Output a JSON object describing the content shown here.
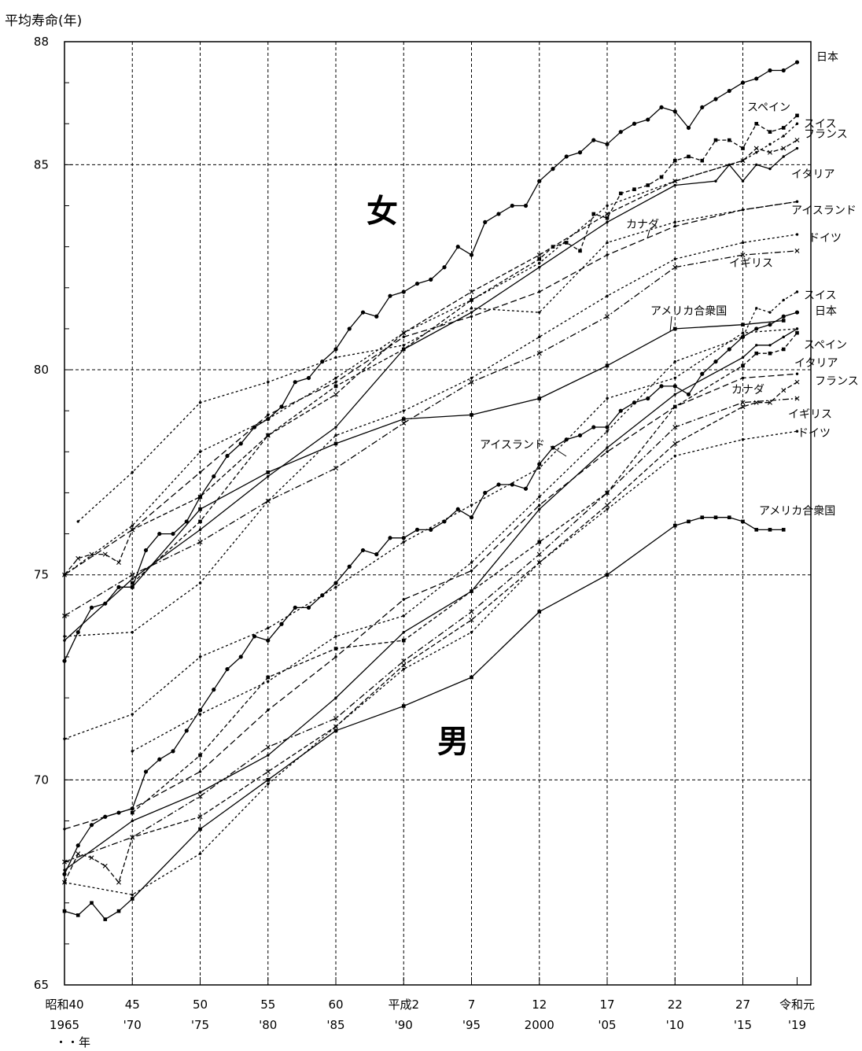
{
  "chart_data": {
    "type": "line",
    "ylabel": "平均寿命(年)",
    "xlabel_note": "・・年",
    "ylim": [
      65,
      88
    ],
    "xlim": [
      1965,
      2020
    ],
    "y_ticks": [
      "65",
      "70",
      "75",
      "80",
      "85",
      "88"
    ],
    "x_ticks": [
      {
        "x": 1965,
        "era": "昭和40",
        "year": "1965"
      },
      {
        "x": 1970,
        "era": "45",
        "year": "'70"
      },
      {
        "x": 1975,
        "era": "50",
        "year": "'75"
      },
      {
        "x": 1980,
        "era": "55",
        "year": "'80"
      },
      {
        "x": 1985,
        "era": "60",
        "year": "'85"
      },
      {
        "x": 1990,
        "era": "平成2",
        "year": "'90"
      },
      {
        "x": 1995,
        "era": "7",
        "year": "'95"
      },
      {
        "x": 2000,
        "era": "12",
        "year": "2000"
      },
      {
        "x": 2005,
        "era": "17",
        "year": "'05"
      },
      {
        "x": 2010,
        "era": "22",
        "year": "'10"
      },
      {
        "x": 2015,
        "era": "27",
        "year": "'15"
      },
      {
        "x": 2019,
        "era": "令和元",
        "year": "'19"
      }
    ],
    "group_labels": {
      "female": "女",
      "male": "男"
    },
    "grid": true,
    "series": [
      {
        "name": "日本",
        "sex": "female",
        "dash": "",
        "marker": "circle",
        "x": [
          1965,
          1966,
          1967,
          1968,
          1969,
          1970,
          1971,
          1972,
          1973,
          1974,
          1975,
          1976,
          1977,
          1978,
          1979,
          1980,
          1981,
          1982,
          1983,
          1984,
          1985,
          1986,
          1987,
          1988,
          1989,
          1990,
          1991,
          1992,
          1993,
          1994,
          1995,
          1996,
          1997,
          1998,
          1999,
          2000,
          2001,
          2002,
          2003,
          2004,
          2005,
          2006,
          2007,
          2008,
          2009,
          2010,
          2011,
          2012,
          2013,
          2014,
          2015,
          2016,
          2017,
          2018,
          2019
        ],
        "y": [
          72.9,
          73.6,
          74.2,
          74.3,
          74.7,
          74.7,
          75.6,
          76.0,
          76.0,
          76.3,
          76.9,
          77.4,
          77.9,
          78.2,
          78.6,
          78.8,
          79.1,
          79.7,
          79.8,
          80.2,
          80.5,
          81.0,
          81.4,
          81.3,
          81.8,
          81.9,
          82.1,
          82.2,
          82.5,
          83.0,
          82.8,
          83.6,
          83.8,
          84.0,
          84.0,
          84.6,
          84.9,
          85.2,
          85.3,
          85.6,
          85.5,
          85.8,
          86.0,
          86.1,
          86.4,
          86.3,
          85.9,
          86.4,
          86.6,
          86.8,
          87.0,
          87.1,
          87.3,
          87.3,
          87.5
        ]
      },
      {
        "name": "スペイン",
        "sex": "female",
        "dash": "5,3",
        "marker": "square",
        "x": [
          1970,
          1975,
          1980,
          1985,
          1990,
          1995,
          2000,
          2001,
          2002,
          2003,
          2004,
          2005,
          2006,
          2007,
          2008,
          2009,
          2010,
          2011,
          2012,
          2013,
          2014,
          2015,
          2016,
          2017,
          2018,
          2019
        ],
        "y": [
          74.8,
          76.3,
          78.4,
          79.6,
          80.5,
          81.7,
          82.7,
          83.0,
          83.1,
          82.9,
          83.8,
          83.7,
          84.3,
          84.4,
          84.5,
          84.7,
          85.1,
          85.2,
          85.1,
          85.6,
          85.6,
          85.4,
          86.0,
          85.8,
          85.9,
          86.2
        ]
      },
      {
        "name": "スイス",
        "sex": "female",
        "dash": "3,3",
        "marker": "dot",
        "x": [
          1965,
          1970,
          1975,
          1980,
          1985,
          1990,
          1995,
          2000,
          2005,
          2010,
          2015,
          2016,
          2017,
          2018,
          2019
        ],
        "y": [
          75.0,
          76.2,
          78.0,
          78.8,
          79.8,
          80.9,
          81.7,
          82.6,
          84.0,
          84.6,
          85.1,
          85.3,
          85.5,
          85.7,
          86.0
        ]
      },
      {
        "name": "フランス",
        "sex": "female",
        "dash": "6,3",
        "marker": "cross",
        "x": [
          1965,
          1966,
          1967,
          1968,
          1969,
          1970,
          1975,
          1980,
          1985,
          1990,
          1995,
          2000,
          2005,
          2010,
          2015,
          2016,
          2017,
          2018,
          2019
        ],
        "y": [
          75.0,
          75.4,
          75.5,
          75.5,
          75.3,
          76.1,
          76.9,
          78.4,
          79.4,
          80.9,
          81.9,
          82.8,
          83.8,
          84.6,
          85.1,
          85.4,
          85.3,
          85.4,
          85.6
        ]
      },
      {
        "name": "イタリア",
        "sex": "female",
        "dash": "",
        "marker": "dot",
        "x": [
          1965,
          1970,
          1975,
          1980,
          1985,
          1990,
          1995,
          2000,
          2005,
          2010,
          2013,
          2014,
          2015,
          2016,
          2017,
          2018,
          2019
        ],
        "y": [
          73.4,
          74.9,
          76.1,
          77.4,
          78.6,
          80.5,
          81.4,
          82.5,
          83.6,
          84.5,
          84.6,
          85.0,
          84.6,
          85.0,
          84.9,
          85.2,
          85.4
        ]
      },
      {
        "name": "カナダ",
        "sex": "female",
        "dash": "8,4",
        "marker": "dot",
        "x": [
          1965,
          1970,
          1975,
          1980,
          1985,
          1990,
          1995,
          2000,
          2005,
          2010,
          2015,
          2019
        ],
        "y": [
          75.0,
          76.1,
          77.5,
          78.9,
          79.7,
          80.8,
          81.3,
          81.9,
          82.8,
          83.5,
          83.9,
          84.1
        ]
      },
      {
        "name": "アイスランド",
        "sex": "female",
        "dash": "3,3",
        "marker": "dot",
        "x": [
          1966,
          1970,
          1975,
          1980,
          1985,
          1990,
          1995,
          2000,
          2005,
          2010,
          2015,
          2019
        ],
        "y": [
          76.3,
          77.5,
          79.2,
          79.7,
          80.3,
          80.6,
          81.5,
          81.4,
          83.1,
          83.6,
          83.9,
          84.1
        ]
      },
      {
        "name": "ドイツ",
        "sex": "female",
        "dash": "3,3",
        "marker": "dot",
        "x": [
          1965,
          1970,
          1975,
          1980,
          1985,
          1990,
          1995,
          2000,
          2005,
          2010,
          2015,
          2019
        ],
        "y": [
          73.5,
          73.6,
          74.8,
          76.8,
          78.4,
          79.0,
          79.8,
          80.8,
          81.8,
          82.7,
          83.1,
          83.3
        ]
      },
      {
        "name": "イギリス",
        "sex": "female",
        "dash": "8,3,2,3",
        "marker": "cross",
        "x": [
          1965,
          1970,
          1975,
          1980,
          1985,
          1990,
          1995,
          2000,
          2005,
          2010,
          2015,
          2019
        ],
        "y": [
          74.0,
          75.0,
          75.8,
          76.8,
          77.6,
          78.7,
          79.7,
          80.4,
          81.3,
          82.5,
          82.8,
          82.9
        ]
      },
      {
        "name": "アメリカ合衆国",
        "sex": "female",
        "dash": "",
        "marker": "square",
        "x": [
          1970,
          1975,
          1980,
          1985,
          1990,
          1995,
          2000,
          2005,
          2010,
          2015,
          2018
        ],
        "y": [
          74.7,
          76.6,
          77.5,
          78.2,
          78.8,
          78.9,
          79.3,
          80.1,
          81.0,
          81.1,
          81.2
        ]
      },
      {
        "name": "スイス",
        "sex": "male",
        "dash": "3,3",
        "marker": "dot",
        "x": [
          1970,
          1975,
          1980,
          1985,
          1990,
          1995,
          2000,
          2005,
          2010,
          2015,
          2016,
          2017,
          2018,
          2019
        ],
        "y": [
          70.7,
          71.6,
          72.4,
          73.5,
          74.0,
          75.3,
          76.9,
          78.5,
          80.2,
          80.8,
          81.5,
          81.4,
          81.7,
          81.9
        ]
      },
      {
        "name": "日本",
        "sex": "male",
        "dash": "",
        "marker": "circle",
        "x": [
          1965,
          1966,
          1967,
          1968,
          1969,
          1970,
          1971,
          1972,
          1973,
          1974,
          1975,
          1976,
          1977,
          1978,
          1979,
          1980,
          1981,
          1982,
          1983,
          1984,
          1985,
          1986,
          1987,
          1988,
          1989,
          1990,
          1991,
          1992,
          1993,
          1994,
          1995,
          1996,
          1997,
          1998,
          1999,
          2000,
          2001,
          2002,
          2003,
          2004,
          2005,
          2006,
          2007,
          2008,
          2009,
          2010,
          2011,
          2012,
          2013,
          2014,
          2015,
          2016,
          2017,
          2018,
          2019
        ],
        "y": [
          67.7,
          68.4,
          68.9,
          69.1,
          69.2,
          69.3,
          70.2,
          70.5,
          70.7,
          71.2,
          71.7,
          72.2,
          72.7,
          73.0,
          73.5,
          73.4,
          73.8,
          74.2,
          74.2,
          74.5,
          74.8,
          75.2,
          75.6,
          75.5,
          75.9,
          75.9,
          76.1,
          76.1,
          76.3,
          76.6,
          76.4,
          77.0,
          77.2,
          77.2,
          77.1,
          77.7,
          78.1,
          78.3,
          78.4,
          78.6,
          78.6,
          79.0,
          79.2,
          79.3,
          79.6,
          79.6,
          79.4,
          79.9,
          80.2,
          80.5,
          80.8,
          81.0,
          81.1,
          81.3,
          81.4
        ]
      },
      {
        "name": "スペイン",
        "sex": "male",
        "dash": "5,3",
        "marker": "square",
        "x": [
          1970,
          1975,
          1980,
          1985,
          1990,
          1995,
          2000,
          2005,
          2010,
          2015,
          2016,
          2017,
          2018,
          2019
        ],
        "y": [
          69.2,
          70.6,
          72.5,
          73.2,
          73.4,
          74.6,
          75.8,
          77.0,
          79.1,
          80.1,
          80.4,
          80.4,
          80.5,
          80.9
        ]
      },
      {
        "name": "イタリア",
        "sex": "male",
        "dash": "",
        "marker": "dot",
        "x": [
          1965,
          1970,
          1975,
          1980,
          1985,
          1990,
          1995,
          2000,
          2005,
          2010,
          2015,
          2016,
          2017,
          2018,
          2019
        ],
        "y": [
          67.8,
          69.0,
          69.7,
          70.6,
          72.0,
          73.6,
          74.6,
          76.6,
          78.1,
          79.4,
          80.3,
          80.6,
          80.6,
          80.8,
          81.0
        ]
      },
      {
        "name": "カナダ",
        "sex": "male",
        "dash": "8,4",
        "marker": "dot",
        "x": [
          1965,
          1970,
          1975,
          1980,
          1985,
          1990,
          1995,
          2000,
          2005,
          2010,
          2015,
          2019
        ],
        "y": [
          68.8,
          69.3,
          70.2,
          71.7,
          73.0,
          74.4,
          75.1,
          76.7,
          78.0,
          79.1,
          79.8,
          79.9
        ]
      },
      {
        "name": "フランス",
        "sex": "male",
        "dash": "6,3",
        "marker": "cross",
        "x": [
          1965,
          1966,
          1967,
          1968,
          1969,
          1970,
          1975,
          1980,
          1985,
          1990,
          1995,
          2000,
          2005,
          2010,
          2015,
          2016,
          2017,
          2018,
          2019
        ],
        "y": [
          67.5,
          68.2,
          68.1,
          67.9,
          67.5,
          68.6,
          69.1,
          70.2,
          71.3,
          72.8,
          73.9,
          75.3,
          76.7,
          78.2,
          79.1,
          79.2,
          79.2,
          79.5,
          79.7
        ]
      },
      {
        "name": "イギリス",
        "sex": "male",
        "dash": "8,3,2,3",
        "marker": "cross",
        "x": [
          1965,
          1970,
          1975,
          1980,
          1985,
          1990,
          1995,
          2000,
          2005,
          2010,
          2015,
          2019
        ],
        "y": [
          68.0,
          68.6,
          69.6,
          70.8,
          71.5,
          72.9,
          74.1,
          75.5,
          77.0,
          78.6,
          79.2,
          79.3
        ]
      },
      {
        "name": "ドイツ",
        "sex": "male",
        "dash": "3,3",
        "marker": "dot",
        "x": [
          1965,
          1970,
          1975,
          1980,
          1985,
          1990,
          1995,
          2000,
          2005,
          2010,
          2015,
          2019
        ],
        "y": [
          67.5,
          67.2,
          68.2,
          69.9,
          71.3,
          72.7,
          73.6,
          75.3,
          76.6,
          77.9,
          78.3,
          78.5
        ]
      },
      {
        "name": "アイスランド",
        "sex": "male",
        "dash": "3,3",
        "marker": "dot",
        "x": [
          1965,
          1970,
          1975,
          1980,
          1985,
          1990,
          1995,
          2000,
          2005,
          2010,
          2015,
          2019
        ],
        "y": [
          71.0,
          71.6,
          73.0,
          73.7,
          74.7,
          75.8,
          76.7,
          77.6,
          79.3,
          79.8,
          80.9,
          81.0
        ]
      },
      {
        "name": "アメリカ合衆国",
        "sex": "male",
        "dash": "",
        "marker": "square",
        "x": [
          1965,
          1966,
          1967,
          1968,
          1969,
          1970,
          1975,
          1980,
          1985,
          1990,
          1995,
          2000,
          2005,
          2010,
          2011,
          2012,
          2013,
          2014,
          2015,
          2016,
          2017,
          2018
        ],
        "y": [
          66.8,
          66.7,
          67.0,
          66.6,
          66.8,
          67.1,
          68.8,
          70.0,
          71.2,
          71.8,
          72.5,
          74.1,
          75.0,
          76.2,
          76.3,
          76.4,
          76.4,
          76.4,
          76.3,
          76.1,
          76.1,
          76.1
        ]
      }
    ],
    "series_labels": [
      {
        "text": "日本"
      },
      {
        "text": "スペイン"
      },
      {
        "text": "スイス"
      },
      {
        "text": "フランス"
      },
      {
        "text": "イタリア"
      },
      {
        "text": "アイスランド"
      },
      {
        "text": "カナダ"
      },
      {
        "text": "ドイツ"
      },
      {
        "text": "イギリス"
      },
      {
        "text": "アメリカ合衆国"
      },
      {
        "text": "スイス"
      },
      {
        "text": "日本"
      },
      {
        "text": "スペイン"
      },
      {
        "text": "イタリア"
      },
      {
        "text": "カナダ"
      },
      {
        "text": "フランス"
      },
      {
        "text": "イギリス"
      },
      {
        "text": "ドイツ"
      },
      {
        "text": "アイスランド"
      },
      {
        "text": "アメリカ合衆国"
      }
    ]
  }
}
